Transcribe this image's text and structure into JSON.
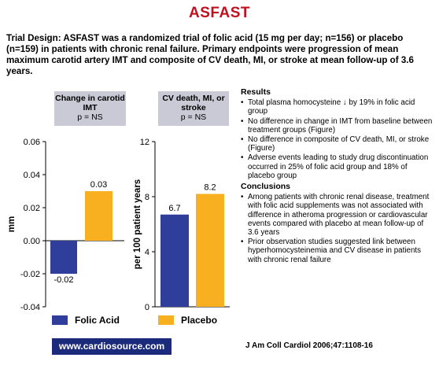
{
  "title": "ASFAST",
  "trial_design": "Trial Design: ASFAST was a randomized trial of folic acid (15 mg per day; n=156) or placebo (n=159) in patients with chronic renal failure. Primary endpoints were progression of mean maximum carotid artery IMT and composite of CV death, MI, or stroke at mean follow-up of 3.6 years.",
  "colors": {
    "folic_acid": "#2e3e9a",
    "placebo": "#f8b020",
    "title": "#c0111f",
    "panel_label_bg": "#c9cad6",
    "url_bg": "#1b2a7a"
  },
  "chart_data": [
    {
      "type": "bar",
      "panel_title": "Change in carotid IMT",
      "p_value": "p = NS",
      "ylabel": "mm",
      "ylim": [
        -0.04,
        0.06
      ],
      "yticks": [
        -0.04,
        -0.02,
        0.0,
        0.02,
        0.04,
        0.06
      ],
      "ytick_labels": [
        "-0.04",
        "-0.02",
        "0.00",
        "0.02",
        "0.04",
        "0.06"
      ],
      "series": [
        {
          "name": "Folic Acid",
          "value": -0.02,
          "label": "-0.02"
        },
        {
          "name": "Placebo",
          "value": 0.03,
          "label": "0.03"
        }
      ]
    },
    {
      "type": "bar",
      "panel_title": "CV death, MI, or stroke",
      "p_value": "p = NS",
      "ylabel": "per 100 patient years",
      "ylim": [
        0,
        12
      ],
      "yticks": [
        0,
        4,
        8,
        12
      ],
      "ytick_labels": [
        "0",
        "4",
        "8",
        "12"
      ],
      "series": [
        {
          "name": "Folic Acid",
          "value": 6.7,
          "label": "6.7"
        },
        {
          "name": "Placebo",
          "value": 8.2,
          "label": "8.2"
        }
      ]
    }
  ],
  "legend": {
    "folic_acid": "Folic Acid",
    "placebo": "Placebo"
  },
  "results_heading": "Results",
  "results": [
    "Total plasma homocysteine ↓ by 19% in folic acid group",
    "No difference in change in IMT from baseline between treatment groups (Figure)",
    "No difference in composite of CV death, MI, or stroke (Figure)",
    "Adverse events leading to study drug discontinuation occurred in 25% of folic acid group and 18% of placebo group"
  ],
  "conclusions_heading": "Conclusions",
  "conclusions": [
    "Among patients with chronic renal disease, treatment with folic acid supplements was not associated with difference in atheroma progression or cardiovascular events compared with placebo at mean follow-up of 3.6 years",
    "Prior observation studies suggested link between hyperhomocysteinemia and CV disease in patients with chronic renal failure"
  ],
  "website": "www.cardiosource.com",
  "citation": "J Am Coll Cardiol 2006;47:1108-16"
}
